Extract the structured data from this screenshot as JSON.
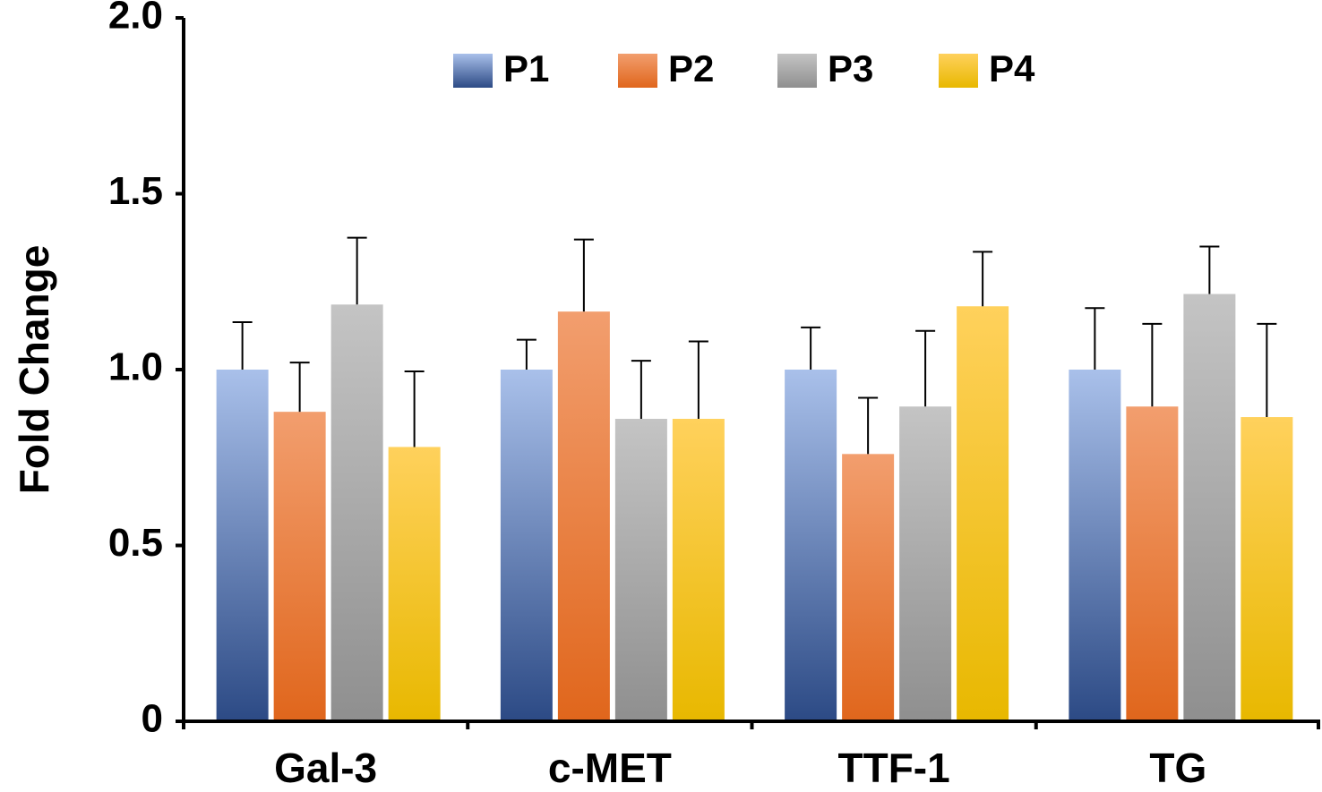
{
  "chart_data": {
    "type": "bar",
    "title": "",
    "xlabel": "",
    "ylabel": "Fold Change",
    "ylim": [
      0,
      2.0
    ],
    "yticks": [
      0,
      0.5,
      1.0,
      1.5,
      2.0
    ],
    "ytick_labels": [
      "0",
      "0.5",
      "1.0",
      "1.5",
      "2.0"
    ],
    "categories": [
      "Gal-3",
      "c-MET",
      "TTF-1",
      "TG"
    ],
    "legend_position": "top-center",
    "grid": false,
    "series": [
      {
        "name": "P1",
        "color_top": "#a9c0ea",
        "color_bottom": "#2c4a85",
        "values": [
          1.0,
          1.0,
          1.0,
          1.0
        ],
        "errors": [
          0.135,
          0.085,
          0.12,
          0.175
        ]
      },
      {
        "name": "P2",
        "color_top": "#f29e6e",
        "color_bottom": "#e0661c",
        "values": [
          0.88,
          1.165,
          0.76,
          0.895
        ],
        "errors": [
          0.14,
          0.205,
          0.16,
          0.235
        ]
      },
      {
        "name": "P3",
        "color_top": "#c4c4c4",
        "color_bottom": "#8f8f8f",
        "values": [
          1.185,
          0.86,
          0.895,
          1.215
        ],
        "errors": [
          0.19,
          0.165,
          0.215,
          0.135
        ]
      },
      {
        "name": "P4",
        "color_top": "#ffd15c",
        "color_bottom": "#e8b800",
        "values": [
          0.78,
          0.86,
          1.18,
          0.865
        ],
        "errors": [
          0.215,
          0.22,
          0.155,
          0.265
        ]
      }
    ]
  }
}
